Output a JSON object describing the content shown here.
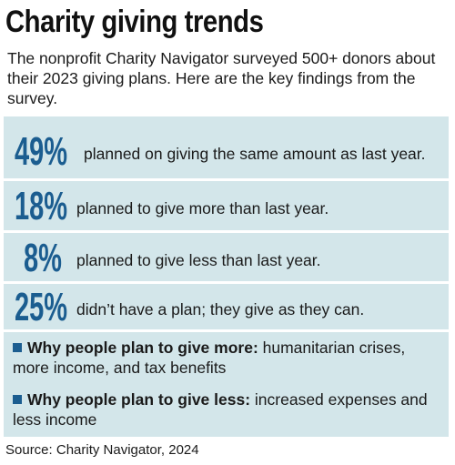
{
  "title": "Charity giving trends",
  "intro": "The nonprofit Charity Navigator surveyed 500+ donors about their 2023 giving plans. Here are the key findings from the survey.",
  "stats": [
    {
      "value": "49%",
      "text": "planned on giving the same amount as last year."
    },
    {
      "value": "18%",
      "text": "planned to give more than last year."
    },
    {
      "value": "8%",
      "text": "planned to give less than last year."
    },
    {
      "value": "25%",
      "text": "didn’t have a plan; they give as they can."
    }
  ],
  "reasons": [
    {
      "lead": "Why people plan to give more:",
      "text": " humanitarian crises, more income, and tax benefits"
    },
    {
      "lead": "Why people plan to give less:",
      "text": " increased expenses and less income"
    }
  ],
  "source": "Source: Charity Navigator, 2024",
  "colors": {
    "accent": "#1b5d90",
    "panel": "#d3e6ea",
    "text": "#1a1a1a"
  }
}
